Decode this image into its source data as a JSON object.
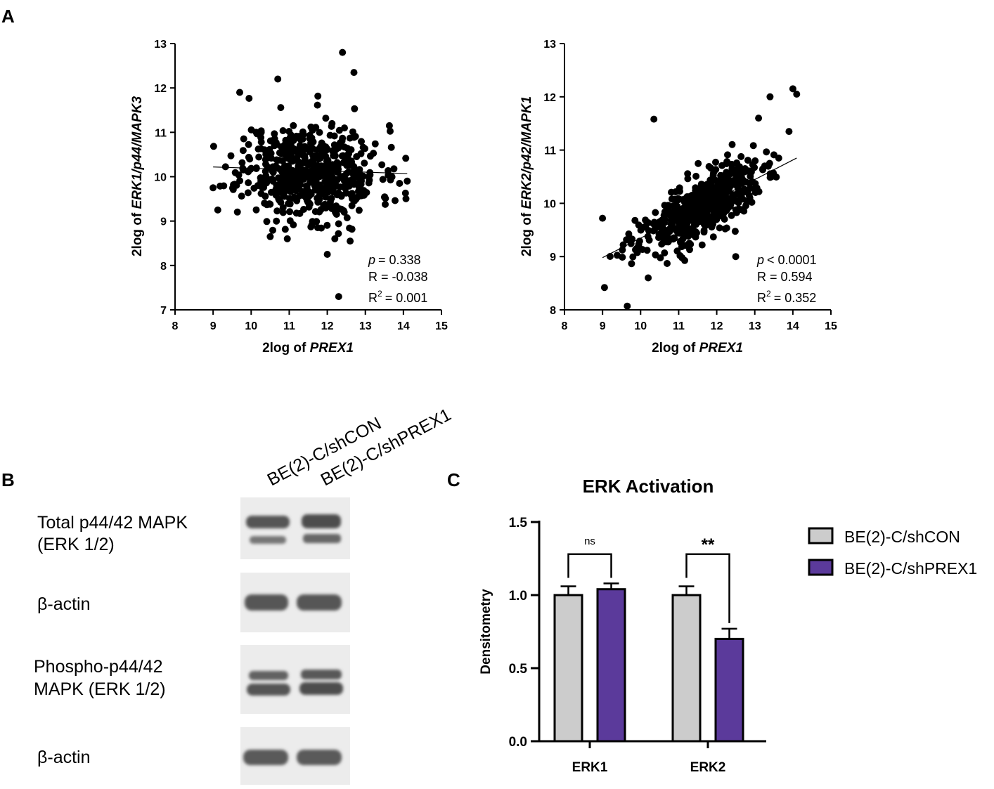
{
  "panels": {
    "a_label": "A",
    "b_label": "B",
    "c_label": "C"
  },
  "chart_data": [
    {
      "type": "scatter",
      "id": "scatter_erk1",
      "xlabel_prefix": "2log of ",
      "xlabel_gene": "PREX1",
      "ylabel_prefix": "2log of ",
      "ylabel_gene": "ERK1/p44/MAPK3",
      "xlim": [
        8,
        15
      ],
      "ylim": [
        7,
        13
      ],
      "xticks": [
        "8",
        "9",
        "10",
        "11",
        "12",
        "13",
        "14",
        "15"
      ],
      "yticks": [
        "7",
        "8",
        "9",
        "10",
        "11",
        "12",
        "13"
      ],
      "fit_line": {
        "x": [
          9.0,
          14.1
        ],
        "y": [
          10.22,
          10.07
        ]
      },
      "stats": {
        "p_label": "p",
        "p_value": "= 0.338",
        "r": "R = -0.038",
        "r2_prefix": "R",
        "r2_sup": "2",
        "r2_value": "= 0.001"
      },
      "highlight_points": [
        [
          12.4,
          12.8
        ],
        [
          12.3,
          7.3
        ],
        [
          12.0,
          8.25
        ],
        [
          10.5,
          8.65
        ],
        [
          12.6,
          8.55
        ],
        [
          10.7,
          12.2
        ],
        [
          9.0,
          9.75
        ],
        [
          14.1,
          9.9
        ],
        [
          9.7,
          11.9
        ],
        [
          13.9,
          9.85
        ],
        [
          12.7,
          12.35
        ]
      ],
      "cluster": {
        "n": 560,
        "x_mean": 11.55,
        "x_sd": 0.9,
        "y_mean": 10.12,
        "y_sd": 0.55,
        "slope": -0.03,
        "x_range": [
          9.0,
          14.1
        ],
        "y_range": [
          8.6,
          12.4
        ],
        "seed": 11
      }
    },
    {
      "type": "scatter",
      "id": "scatter_erk2",
      "xlabel_prefix": "2log of ",
      "xlabel_gene": "PREX1",
      "ylabel_prefix": "2log of ",
      "ylabel_gene": "ERK2/p42/MAPK1",
      "xlim": [
        8,
        15
      ],
      "ylim": [
        8,
        13
      ],
      "xticks": [
        "8",
        "9",
        "10",
        "11",
        "12",
        "13",
        "14",
        "15"
      ],
      "yticks": [
        "8",
        "9",
        "10",
        "11",
        "12",
        "13"
      ],
      "fit_line": {
        "x": [
          9.0,
          14.1
        ],
        "y": [
          8.98,
          10.85
        ]
      },
      "stats": {
        "p_label": "p",
        "p_value": "< 0.0001",
        "r": "R = 0.594",
        "r2_prefix": "R",
        "r2_sup": "2",
        "r2_value": "= 0.352"
      },
      "highlight_points": [
        [
          14.0,
          12.15
        ],
        [
          14.1,
          12.05
        ],
        [
          13.4,
          12.0
        ],
        [
          10.35,
          11.58
        ],
        [
          9.65,
          8.07
        ],
        [
          9.05,
          8.42
        ],
        [
          10.2,
          8.6
        ],
        [
          12.5,
          9.0
        ],
        [
          9.0,
          9.72
        ],
        [
          13.1,
          11.6
        ],
        [
          13.9,
          11.35
        ]
      ],
      "cluster": {
        "n": 560,
        "x_mean": 11.55,
        "x_sd": 0.8,
        "y_mean": 9.9,
        "y_sd": 0.28,
        "slope": 0.37,
        "x_range": [
          9.0,
          14.1
        ],
        "y_range": [
          8.4,
          12.0
        ],
        "seed": 23
      }
    },
    {
      "type": "bar",
      "id": "erk_activation",
      "title": "ERK Activation",
      "ylabel": "Densitometry",
      "ylim": [
        0.0,
        1.5
      ],
      "yticks": [
        "0.0",
        "0.5",
        "1.0",
        "1.5"
      ],
      "categories": [
        "ERK1",
        "ERK2"
      ],
      "series": [
        {
          "name": "BE(2)-C/shCON",
          "color": "#cccccc",
          "values": [
            1.0,
            1.0
          ],
          "errors": [
            0.06,
            0.06
          ]
        },
        {
          "name": "BE(2)-C/shPREX1",
          "color": "#5b3a9b",
          "values": [
            1.04,
            0.7
          ],
          "errors": [
            0.04,
            0.07
          ]
        }
      ],
      "significance": [
        {
          "category": "ERK1",
          "label": "ns",
          "level": 1.28
        },
        {
          "category": "ERK2",
          "label": "**",
          "level": 1.28
        }
      ]
    }
  ],
  "western_blot": {
    "lanes": [
      "BE(2)-C/shCON",
      "BE(2)-C/shPREX1"
    ],
    "blots": [
      {
        "label_line1": "Total p44/42 MAPK",
        "label_line2": "(ERK 1/2)",
        "bands": "double"
      },
      {
        "label_line1": "β-actin",
        "label_line2": "",
        "bands": "single"
      },
      {
        "label_line1": "Phospho-p44/42",
        "label_line2": "MAPK (ERK 1/2)",
        "bands": "double-phospho"
      },
      {
        "label_line1": "β-actin",
        "label_line2": "",
        "bands": "single"
      }
    ]
  }
}
